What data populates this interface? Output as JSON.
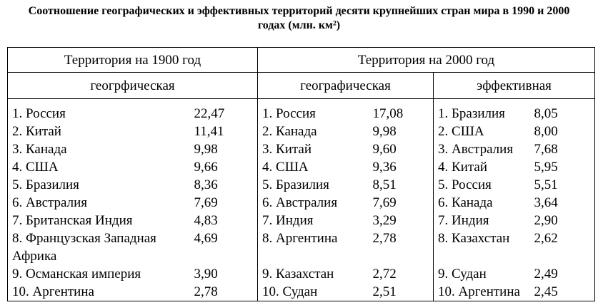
{
  "header": {
    "title": "Соотношение географических и эффективных территорий десяти крупнейших стран мира в 1990 и 2000 годах (млн. км²)"
  },
  "table": {
    "groups": [
      "Территория на 1900 год",
      "Территория на 2000 год"
    ],
    "subgroups": [
      "геогрфическая",
      "географическая",
      "эффективная"
    ],
    "rows": [
      [
        "1. Россия",
        "22,47",
        "1. Россия",
        "17,08",
        "1. Бразилия",
        "8,05"
      ],
      [
        "2. Китай",
        "11,41",
        "2. Канада",
        "9,98",
        "2. США",
        "8,00"
      ],
      [
        "3. Канада",
        "9,98",
        "3. Китай",
        "9,60",
        "3. Австралия",
        "7,68"
      ],
      [
        "4. США",
        "9,66",
        "4. США",
        "9,36",
        "4. Китай",
        "5,95"
      ],
      [
        "5. Бразилия",
        "8,36",
        "5. Бразилия",
        "8,51",
        "5. Россия",
        "5,51"
      ],
      [
        "6. Австралия",
        "7,69",
        "6. Австралия",
        "7,69",
        "6. Канада",
        "3,64"
      ],
      [
        "7. Британская Индия",
        "4,83",
        "7. Индия",
        "3,29",
        "7. Индия",
        "2,90"
      ],
      [
        "8. Французская Западная Африка",
        "4,69",
        "8. Аргентина",
        "2,78",
        "8. Казахстан",
        "2,62"
      ],
      [
        "9. Османская империя",
        "3,90",
        "9. Казахстан",
        "2,72",
        "9. Судан",
        "2,49"
      ],
      [
        "10. Аргентина",
        "2,78",
        "10. Судан",
        "2,51",
        "10. Аргентина",
        "2,45"
      ]
    ]
  }
}
